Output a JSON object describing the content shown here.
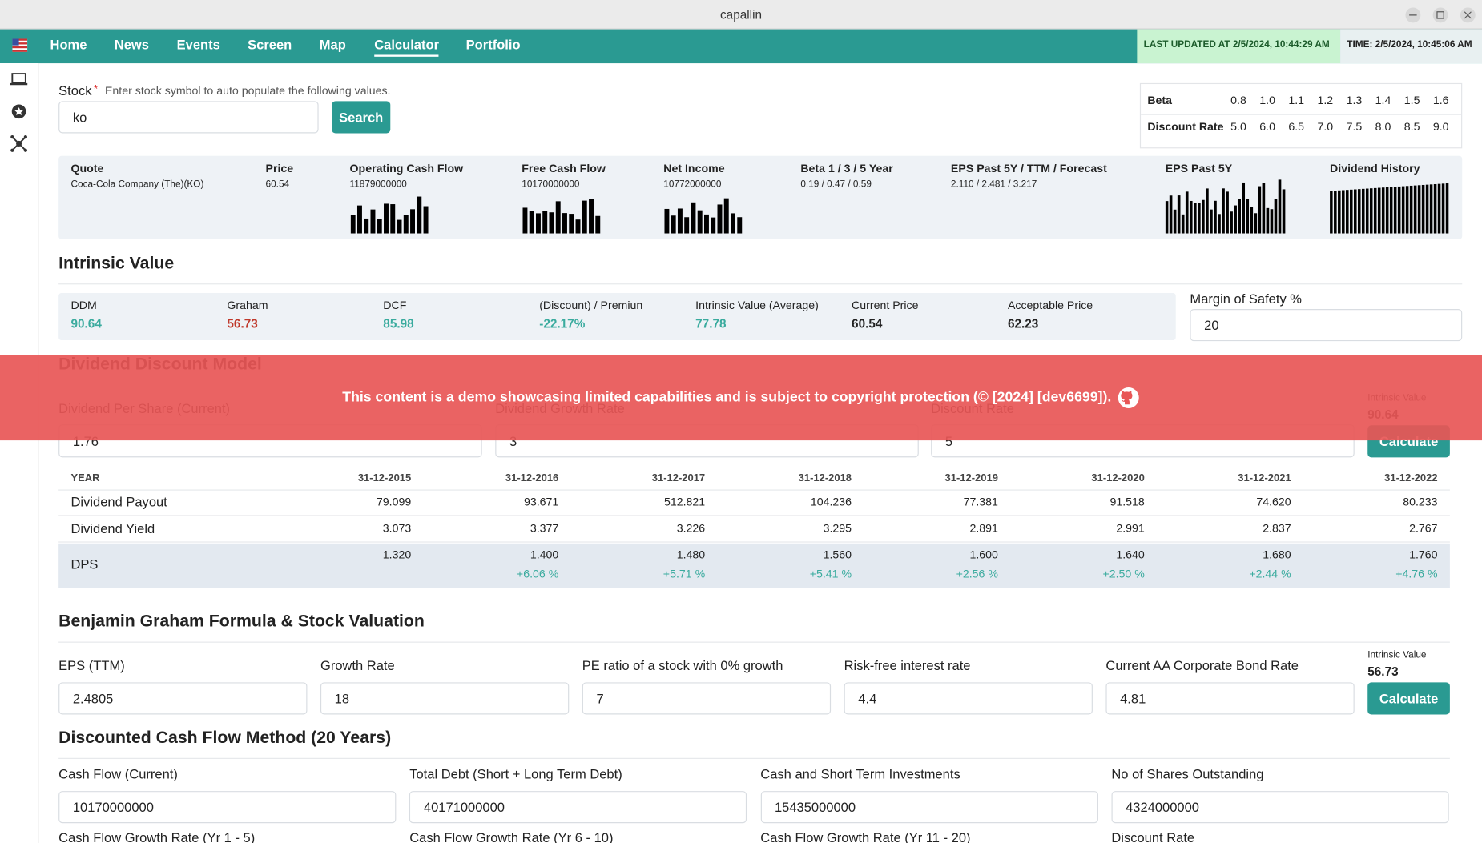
{
  "window": {
    "title": "capallin"
  },
  "nav": {
    "items": [
      "Home",
      "News",
      "Events",
      "Screen",
      "Map",
      "Calculator",
      "Portfolio"
    ],
    "active_index": 5,
    "last_updated": "LAST UPDATED AT 2/5/2024, 10:44:29 AM",
    "time": "TIME: 2/5/2024, 10:45:06 AM"
  },
  "stock": {
    "label": "Stock",
    "required": "*",
    "hint": "Enter stock symbol to auto populate the following values.",
    "value": "ko",
    "button": "Search"
  },
  "rate_table": {
    "rows": [
      {
        "label": "Beta",
        "values": [
          "0.8",
          "1.0",
          "1.1",
          "1.2",
          "1.3",
          "1.4",
          "1.5",
          "1.6"
        ]
      },
      {
        "label": "Discount Rate",
        "values": [
          "5.0",
          "6.0",
          "6.5",
          "7.0",
          "7.5",
          "8.0",
          "8.5",
          "9.0"
        ]
      }
    ]
  },
  "quote": {
    "columns": [
      {
        "label": "Quote",
        "value": "Coca-Cola Company (The)(KO)"
      },
      {
        "label": "Price",
        "value": "60.54"
      },
      {
        "label": "Operating Cash Flow",
        "value": "11879000000"
      },
      {
        "label": "Free Cash Flow",
        "value": "10170000000"
      },
      {
        "label": "Net Income",
        "value": "10772000000"
      },
      {
        "label": "Beta 1 / 3 / 5 Year",
        "value": "0.19 / 0.47 / 0.59"
      },
      {
        "label": "EPS Past 5Y / TTM / Forecast",
        "value": "2.110 / 2.481 / 3.217"
      },
      {
        "label": "EPS Past 5Y"
      },
      {
        "label": "Dividend History"
      }
    ]
  },
  "intrinsic": {
    "title": "Intrinsic Value",
    "items": [
      {
        "label": "DDM",
        "value": "90.64",
        "color": "#3aab9e"
      },
      {
        "label": "Graham",
        "value": "56.73",
        "color": "#c0392b"
      },
      {
        "label": "DCF",
        "value": "85.98",
        "color": "#3aab9e"
      },
      {
        "label": "(Discount) / Premiun",
        "value": "-22.17%",
        "color": "#3aab9e"
      },
      {
        "label": "Intrinsic Value (Average)",
        "value": "77.78",
        "color": "#3aab9e"
      },
      {
        "label": "Current Price",
        "value": "60.54",
        "color": "#222222"
      },
      {
        "label": "Acceptable Price",
        "value": "62.23",
        "color": "#222222"
      }
    ],
    "margin_label": "Margin of Safety %",
    "margin_value": "20"
  },
  "banner": {
    "text": "This content is a demo showcasing limited capabilities and is subject to copyright protection (© [2024] [dev6699])."
  },
  "ddm": {
    "title": "Dividend Discount Model",
    "fields": [
      {
        "label": "Dividend Per Share (Current)",
        "value": "1.76"
      },
      {
        "label": "Dividend Growth Rate",
        "value": "3"
      },
      {
        "label": "Discount Rate",
        "value": "5"
      }
    ],
    "result_label": "Intrinsic Value",
    "result_value": "90.64",
    "button": "Calculate",
    "table": {
      "header": "YEAR",
      "years": [
        "31-12-2015",
        "31-12-2016",
        "31-12-2017",
        "31-12-2018",
        "31-12-2019",
        "31-12-2020",
        "31-12-2021",
        "31-12-2022"
      ],
      "rows": [
        {
          "label": "Dividend Payout",
          "values": [
            "79.099",
            "93.671",
            "512.821",
            "104.236",
            "77.381",
            "91.518",
            "74.620",
            "80.233"
          ]
        },
        {
          "label": "Dividend Yield",
          "values": [
            "3.073",
            "3.377",
            "3.226",
            "3.295",
            "2.891",
            "2.991",
            "2.837",
            "2.767"
          ]
        }
      ],
      "dps": {
        "label": "DPS",
        "values": [
          "1.320",
          "1.400",
          "1.480",
          "1.560",
          "1.600",
          "1.640",
          "1.680",
          "1.760"
        ],
        "growth": [
          "+6.06 %",
          "+5.71 %",
          "+5.41 %",
          "+2.56 %",
          "+2.50 %",
          "+2.44 %",
          "+4.76 %"
        ]
      }
    }
  },
  "graham": {
    "title": "Benjamin Graham Formula & Stock Valuation",
    "fields": [
      {
        "label": "EPS (TTM)",
        "value": "2.4805"
      },
      {
        "label": "Growth Rate",
        "value": "18"
      },
      {
        "label": "PE ratio of a stock with 0% growth",
        "value": "7"
      },
      {
        "label": "Risk-free interest rate",
        "value": "4.4"
      },
      {
        "label": "Current AA Corporate Bond Rate",
        "value": "4.81"
      }
    ],
    "result_label": "Intrinsic Value",
    "result_value": "56.73",
    "button": "Calculate"
  },
  "dcf": {
    "title": "Discounted Cash Flow Method (20 Years)",
    "fields": [
      {
        "label": "Cash Flow (Current)",
        "value": "10170000000"
      },
      {
        "label": "Total Debt (Short + Long Term Debt)",
        "value": "40171000000"
      },
      {
        "label": "Cash and Short Term Investments",
        "value": "15435000000"
      },
      {
        "label": "No of Shares Outstanding",
        "value": "4324000000"
      }
    ],
    "next_labels": [
      "Cash Flow Growth Rate (Yr 1 - 5)",
      "Cash Flow Growth Rate (Yr 6 - 10)",
      "Cash Flow Growth Rate (Yr 11 - 20)",
      "Discount Rate"
    ]
  }
}
